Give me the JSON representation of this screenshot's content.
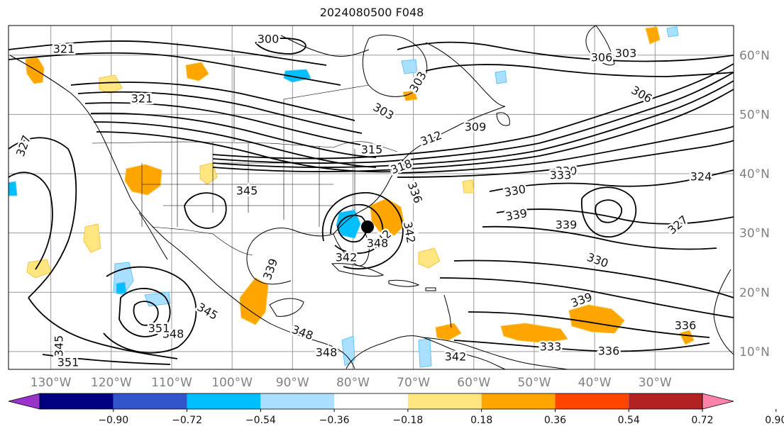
{
  "title": "2024080500 F048",
  "map": {
    "projection": "lat-lon",
    "lon_range": [
      -137,
      -17
    ],
    "lat_range": [
      7,
      65
    ],
    "lon_ticks": [
      "130°W",
      "120°W",
      "110°W",
      "100°W",
      "90°W",
      "80°W",
      "70°W",
      "60°W",
      "50°W",
      "40°W",
      "30°W"
    ],
    "lat_ticks": [
      "10°N",
      "20°N",
      "30°N",
      "40°N",
      "50°N",
      "60°N"
    ],
    "grid": true,
    "contour_color": "#000000",
    "contour_labels": [
      "300",
      "303",
      "303",
      "303",
      "306",
      "306",
      "309",
      "312",
      "315",
      "318",
      "321",
      "321",
      "324",
      "327",
      "327",
      "330",
      "330",
      "330",
      "333",
      "333",
      "336",
      "336",
      "336",
      "339",
      "339",
      "339",
      "339",
      "342",
      "342",
      "342",
      "342",
      "345",
      "345",
      "345",
      "348",
      "348",
      "348",
      "348",
      "351",
      "351"
    ],
    "hurricane_marker": "filled-circle"
  },
  "colorbar": {
    "extend": "both",
    "ticks": [
      "−0.90",
      "−0.72",
      "−0.54",
      "−0.36",
      "−0.18",
      "0.18",
      "0.36",
      "0.54",
      "0.72",
      "0.90"
    ],
    "colors": [
      "#9933cc",
      "#000080",
      "#3355cc",
      "#00bfff",
      "#aadfff",
      "#ffffff",
      "#ffe680",
      "#ffa500",
      "#ff4500",
      "#b22222",
      "#ff82ab"
    ]
  }
}
